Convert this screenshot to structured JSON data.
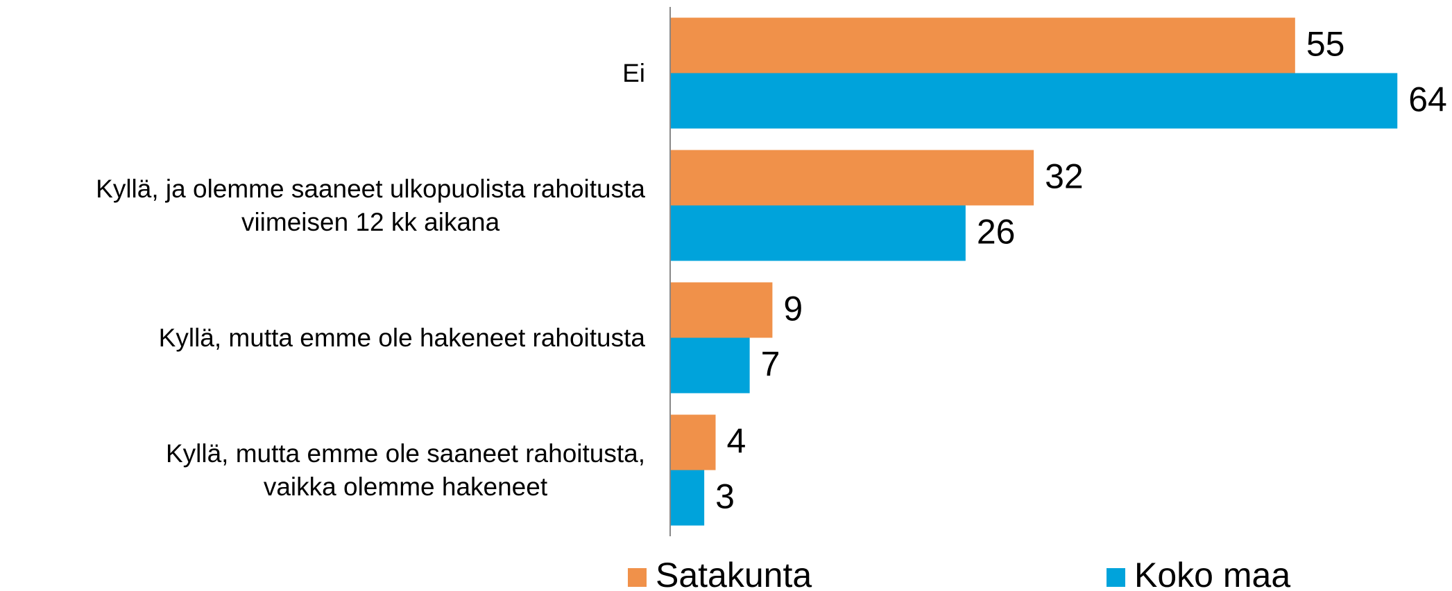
{
  "chart_data": {
    "type": "barh",
    "categories": [
      "Ei",
      "Kyllä, ja olemme saaneet ulkopuolista rahoitusta\nviimeisen 12 kk aikana",
      "Kyllä, mutta emme ole hakeneet rahoitusta",
      "Kyllä, mutta emme ole saaneet rahoitusta,\nvaikka olemme hakeneet"
    ],
    "series": [
      {
        "name": "Satakunta",
        "color": "#F0914A",
        "values": [
          55,
          32,
          9,
          4
        ]
      },
      {
        "name": "Koko maa",
        "color": "#00A3DB",
        "values": [
          64,
          26,
          7,
          3
        ]
      }
    ],
    "xlim": [
      0,
      66
    ],
    "legend": "bottom"
  }
}
